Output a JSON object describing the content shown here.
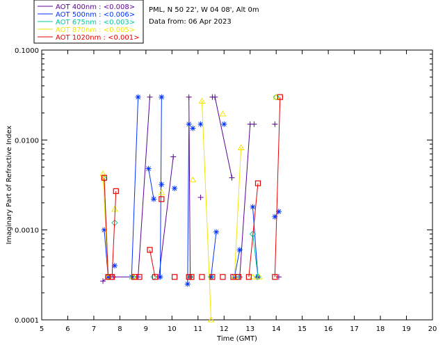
{
  "info": {
    "location": "PML, N 50 22', W 04 08', Alt 0m",
    "date": "Data from: 06 Apr 2023"
  },
  "colors": {
    "aot400": "#5a0096",
    "aot500": "#0033ff",
    "aot675": "#00cc99",
    "aot870": "#f2e600",
    "aot1020": "#e60000"
  },
  "chart_data": {
    "type": "scatter",
    "xlabel": "Time (GMT)",
    "ylabel": "Imaginary Part of Refractive Index",
    "xlim": [
      5,
      20
    ],
    "ylim": [
      0.0001,
      0.1
    ],
    "yscale": "log",
    "xticks": [
      "5",
      "6",
      "7",
      "8",
      "9",
      "10",
      "11",
      "12",
      "13",
      "14",
      "15",
      "16",
      "17",
      "18",
      "19",
      "20"
    ],
    "yticks": [
      {
        "value": 0.0001,
        "label": "0.0001"
      },
      {
        "value": 0.001,
        "label": "0.0010"
      },
      {
        "value": 0.01,
        "label": "0.0100"
      },
      {
        "value": 0.1,
        "label": "0.1000"
      }
    ],
    "legend_position": "top-left",
    "series": [
      {
        "name": "AOT  400nm : <0.008>",
        "marker": "plus",
        "color": "#5a0096",
        "points": [
          [
            7.35,
            0.00027
          ],
          [
            7.55,
            0.0003
          ],
          [
            7.75,
            0.0003
          ],
          [
            8.5,
            0.0003
          ],
          [
            8.7,
            0.0003
          ],
          [
            9.15,
            0.03
          ],
          [
            9.5,
            0.0003
          ],
          [
            10.05,
            0.0065
          ],
          [
            10.65,
            0.03
          ],
          [
            10.7,
            0.0003
          ],
          [
            11.1,
            0.0023
          ],
          [
            11.55,
            0.03
          ],
          [
            11.65,
            0.03
          ],
          [
            12.3,
            0.0038
          ],
          [
            12.6,
            0.0003
          ],
          [
            13.0,
            0.015
          ],
          [
            13.15,
            0.015
          ],
          [
            13.25,
            0.0003
          ],
          [
            13.95,
            0.015
          ],
          [
            14.1,
            0.0003
          ]
        ],
        "segments": [
          [
            0,
            1
          ],
          [
            2,
            3
          ],
          [
            4,
            5
          ],
          [
            6,
            7
          ],
          [
            8,
            9
          ],
          [
            12,
            13
          ],
          [
            14,
            15
          ]
        ]
      },
      {
        "name": "AOT  500nm : <0.006>",
        "marker": "asterisk",
        "color": "#0033ff",
        "points": [
          [
            7.4,
            0.001
          ],
          [
            7.55,
            0.0003
          ],
          [
            7.8,
            0.0004
          ],
          [
            8.45,
            0.0003
          ],
          [
            8.7,
            0.03
          ],
          [
            9.1,
            0.0048
          ],
          [
            9.3,
            0.0022
          ],
          [
            9.55,
            0.0003
          ],
          [
            9.6,
            0.03
          ],
          [
            9.6,
            0.0032
          ],
          [
            10.1,
            0.0029
          ],
          [
            10.6,
            0.00025
          ],
          [
            10.65,
            0.015
          ],
          [
            10.8,
            0.0135
          ],
          [
            11.1,
            0.015
          ],
          [
            11.5,
            0.0003
          ],
          [
            11.7,
            0.00095
          ],
          [
            12.0,
            0.015
          ],
          [
            12.4,
            0.0003
          ],
          [
            12.6,
            0.0006
          ],
          [
            13.1,
            0.0018
          ],
          [
            13.3,
            0.0003
          ],
          [
            13.95,
            0.0014
          ],
          [
            14.1,
            0.0016
          ]
        ],
        "segments": [
          [
            0,
            1
          ],
          [
            3,
            4
          ],
          [
            5,
            6
          ],
          [
            7,
            8
          ],
          [
            11,
            12
          ],
          [
            15,
            16
          ],
          [
            18,
            19
          ],
          [
            20,
            21
          ],
          [
            22,
            23
          ]
        ]
      },
      {
        "name": "AOT  675nm : <0.003>",
        "marker": "diamond",
        "color": "#00cc99",
        "points": [
          [
            7.4,
            0.0037
          ],
          [
            7.55,
            0.0003
          ],
          [
            7.8,
            0.0012
          ],
          [
            8.5,
            0.0003
          ],
          [
            9.3,
            0.0003
          ],
          [
            10.7,
            0.0003
          ],
          [
            11.5,
            0.0003
          ],
          [
            12.5,
            0.0003
          ],
          [
            13.1,
            0.0009
          ],
          [
            13.3,
            0.0003
          ],
          [
            14.0,
            0.03
          ]
        ],
        "segments": [
          [
            0,
            1
          ],
          [
            8,
            9
          ]
        ]
      },
      {
        "name": "AOT  870nm : <0.005>",
        "marker": "triangle",
        "color": "#f2e600",
        "points": [
          [
            7.35,
            0.0042
          ],
          [
            7.55,
            0.0003
          ],
          [
            7.8,
            0.0017
          ],
          [
            8.5,
            0.0003
          ],
          [
            9.6,
            0.0026
          ],
          [
            10.8,
            0.0036
          ],
          [
            11.15,
            0.027
          ],
          [
            11.5,
            0.0001
          ],
          [
            11.95,
            0.0195
          ],
          [
            12.4,
            0.0003
          ],
          [
            12.65,
            0.0082
          ],
          [
            13.1,
            0.0003
          ],
          [
            13.35,
            0.0003
          ],
          [
            14.0,
            0.03
          ]
        ],
        "segments": [
          [
            0,
            1
          ],
          [
            7,
            6
          ],
          [
            9,
            10
          ]
        ]
      },
      {
        "name": "AOT 1020nm : <0.001>",
        "marker": "square",
        "color": "#e60000",
        "points": [
          [
            7.4,
            0.0038
          ],
          [
            7.55,
            0.0003
          ],
          [
            7.7,
            0.0003
          ],
          [
            7.85,
            0.0027
          ],
          [
            8.55,
            0.0003
          ],
          [
            8.75,
            0.0003
          ],
          [
            9.15,
            0.0006
          ],
          [
            9.35,
            0.0003
          ],
          [
            9.6,
            0.0022
          ],
          [
            10.1,
            0.0003
          ],
          [
            10.65,
            0.0003
          ],
          [
            10.75,
            0.0003
          ],
          [
            11.15,
            0.0003
          ],
          [
            11.55,
            0.0003
          ],
          [
            11.95,
            0.0003
          ],
          [
            12.35,
            0.0003
          ],
          [
            12.55,
            0.0003
          ],
          [
            12.95,
            0.0003
          ],
          [
            13.3,
            0.0033
          ],
          [
            13.95,
            0.0003
          ],
          [
            14.15,
            0.03
          ]
        ],
        "segments": [
          [
            0,
            1
          ],
          [
            2,
            3
          ],
          [
            6,
            7
          ],
          [
            17,
            18
          ],
          [
            19,
            20
          ]
        ]
      }
    ]
  }
}
